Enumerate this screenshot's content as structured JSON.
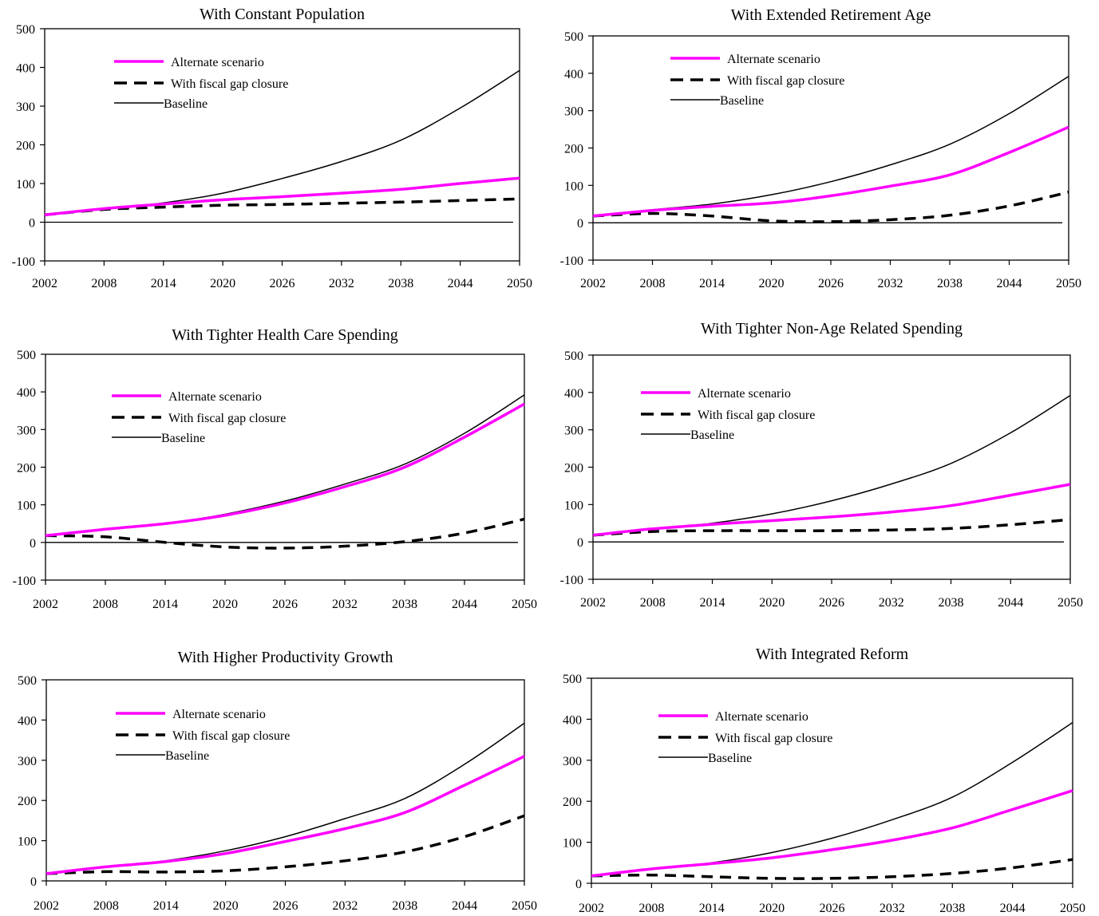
{
  "colors": {
    "alternate": "#ff00ff",
    "gap_closure": "#000000",
    "baseline": "#000000",
    "axis": "#000000"
  },
  "chart_data": [
    {
      "type": "line",
      "title": "With Constant Population",
      "xlabel": "",
      "ylabel": "",
      "x": [
        2002,
        2008,
        2014,
        2020,
        2026,
        2032,
        2038,
        2044,
        2050
      ],
      "xlim": [
        2002,
        2050
      ],
      "ylim": [
        -100,
        500
      ],
      "x_ticks": [
        "2002",
        "2008",
        "2014",
        "2020",
        "2026",
        "2032",
        "2038",
        "2044",
        "2050"
      ],
      "y_ticks": [
        "-100",
        "0",
        "100",
        "200",
        "300",
        "400",
        "500"
      ],
      "legend_position": "top-left",
      "series": [
        {
          "name": "Alternate scenario",
          "style": "thick-magenta",
          "values": [
            19,
            35,
            47,
            58,
            66,
            75,
            85,
            100,
            114
          ]
        },
        {
          "name": "With fiscal gap closure",
          "style": "thick-dashed",
          "values": [
            19,
            33,
            39,
            44,
            46,
            49,
            52,
            56,
            60
          ]
        },
        {
          "name": "Baseline",
          "style": "thin-solid",
          "values": [
            18,
            35,
            50,
            75,
            113,
            157,
            212,
            295,
            392
          ]
        }
      ],
      "zero_line": true
    },
    {
      "type": "line",
      "title": "With Extended Retirement Age",
      "xlabel": "",
      "ylabel": "",
      "x": [
        2002,
        2008,
        2014,
        2020,
        2026,
        2032,
        2038,
        2044,
        2050
      ],
      "xlim": [
        2002,
        2050
      ],
      "ylim": [
        -100,
        500
      ],
      "x_ticks": [
        "2002",
        "2008",
        "2014",
        "2020",
        "2026",
        "2032",
        "2038",
        "2044",
        "2050"
      ],
      "y_ticks": [
        "-100",
        "0",
        "100",
        "200",
        "300",
        "400",
        "500"
      ],
      "legend_position": "top-left",
      "series": [
        {
          "name": "Alternate scenario",
          "style": "thick-magenta",
          "values": [
            18,
            33,
            44,
            53,
            72,
            98,
            128,
            188,
            256
          ]
        },
        {
          "name": "With fiscal gap closure",
          "style": "thick-dashed",
          "values": [
            18,
            25,
            18,
            5,
            3,
            8,
            20,
            45,
            82
          ]
        },
        {
          "name": "Baseline",
          "style": "thin-solid",
          "values": [
            18,
            35,
            50,
            75,
            110,
            155,
            210,
            292,
            392
          ]
        }
      ],
      "zero_line": true
    },
    {
      "type": "line",
      "title": "With Tighter Health Care Spending",
      "xlabel": "",
      "ylabel": "",
      "x": [
        2002,
        2008,
        2014,
        2020,
        2026,
        2032,
        2038,
        2044,
        2050
      ],
      "xlim": [
        2002,
        2050
      ],
      "ylim": [
        -100,
        500
      ],
      "x_ticks": [
        "2002",
        "2008",
        "2014",
        "2020",
        "2026",
        "2032",
        "2038",
        "2044",
        "2050"
      ],
      "y_ticks": [
        "-100",
        "0",
        "100",
        "200",
        "300",
        "400",
        "500"
      ],
      "legend_position": "top-left",
      "series": [
        {
          "name": "Alternate scenario",
          "style": "thick-magenta",
          "values": [
            18,
            35,
            50,
            72,
            105,
            148,
            200,
            280,
            368
          ]
        },
        {
          "name": "With fiscal gap closure",
          "style": "thick-dashed",
          "values": [
            18,
            15,
            0,
            -12,
            -15,
            -10,
            2,
            25,
            62
          ]
        },
        {
          "name": "Baseline",
          "style": "thin-solid",
          "values": [
            18,
            35,
            50,
            75,
            110,
            155,
            208,
            290,
            392
          ]
        }
      ],
      "zero_line": true
    },
    {
      "type": "line",
      "title": "With Tighter Non-Age Related Spending",
      "xlabel": "",
      "ylabel": "",
      "x": [
        2002,
        2008,
        2014,
        2020,
        2026,
        2032,
        2038,
        2044,
        2050
      ],
      "xlim": [
        2002,
        2050
      ],
      "ylim": [
        -100,
        500
      ],
      "x_ticks": [
        "2002",
        "2008",
        "2014",
        "2020",
        "2026",
        "2032",
        "2038",
        "2044",
        "2050"
      ],
      "y_ticks": [
        "-100",
        "0",
        "100",
        "200",
        "300",
        "400",
        "500"
      ],
      "legend_position": "top-left",
      "series": [
        {
          "name": "Alternate scenario",
          "style": "thick-magenta",
          "values": [
            18,
            35,
            47,
            57,
            67,
            80,
            97,
            125,
            154
          ]
        },
        {
          "name": "With fiscal gap closure",
          "style": "thick-dashed",
          "values": [
            18,
            28,
            30,
            30,
            30,
            32,
            36,
            46,
            60
          ]
        },
        {
          "name": "Baseline",
          "style": "thin-solid",
          "values": [
            18,
            35,
            50,
            75,
            110,
            155,
            210,
            292,
            392
          ]
        }
      ],
      "zero_line": true
    },
    {
      "type": "line",
      "title": "With Higher Productivity Growth",
      "xlabel": "",
      "ylabel": "",
      "x": [
        2002,
        2008,
        2014,
        2020,
        2026,
        2032,
        2038,
        2044,
        2050
      ],
      "xlim": [
        2002,
        2050
      ],
      "ylim": [
        0,
        500
      ],
      "x_ticks": [
        "2002",
        "2008",
        "2014",
        "2020",
        "2026",
        "2032",
        "2038",
        "2044",
        "2050"
      ],
      "y_ticks": [
        "0",
        "100",
        "200",
        "300",
        "400",
        "500"
      ],
      "legend_position": "top-left",
      "series": [
        {
          "name": "Alternate scenario",
          "style": "thick-magenta",
          "values": [
            18,
            35,
            48,
            68,
            98,
            130,
            170,
            238,
            310
          ]
        },
        {
          "name": "With fiscal gap closure",
          "style": "thick-dashed",
          "values": [
            18,
            23,
            22,
            25,
            35,
            50,
            72,
            110,
            162
          ]
        },
        {
          "name": "Baseline",
          "style": "thin-solid",
          "values": [
            18,
            35,
            50,
            75,
            110,
            155,
            205,
            290,
            392
          ]
        }
      ],
      "zero_line": false
    },
    {
      "type": "line",
      "title": "With Integrated Reform",
      "xlabel": "",
      "ylabel": "",
      "x": [
        2002,
        2008,
        2014,
        2020,
        2026,
        2032,
        2038,
        2044,
        2050
      ],
      "xlim": [
        2002,
        2050
      ],
      "ylim": [
        0,
        500
      ],
      "x_ticks": [
        "2002",
        "2008",
        "2014",
        "2020",
        "2026",
        "2032",
        "2038",
        "2044",
        "2050"
      ],
      "y_ticks": [
        "0",
        "100",
        "200",
        "300",
        "400",
        "500"
      ],
      "legend_position": "top-left",
      "series": [
        {
          "name": "Alternate scenario",
          "style": "thick-magenta",
          "values": [
            18,
            35,
            48,
            62,
            82,
            105,
            135,
            180,
            226
          ]
        },
        {
          "name": "With fiscal gap closure",
          "style": "thick-dashed",
          "values": [
            18,
            20,
            16,
            12,
            12,
            16,
            24,
            38,
            58
          ]
        },
        {
          "name": "Baseline",
          "style": "thin-solid",
          "values": [
            18,
            35,
            50,
            75,
            110,
            155,
            210,
            295,
            392
          ]
        }
      ],
      "zero_line": false
    }
  ]
}
